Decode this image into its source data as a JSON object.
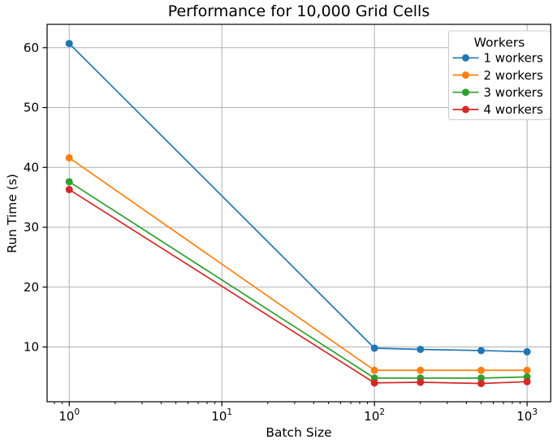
{
  "chart_data": {
    "type": "line",
    "title": "Performance for 10,000 Grid Cells",
    "xlabel": "Batch Size",
    "ylabel": "Run Time (s)",
    "x_scale": "log",
    "y_scale": "linear",
    "x": [
      1,
      100,
      200,
      500,
      1000
    ],
    "series": [
      {
        "name": "1 workers",
        "color": "#1f77b4",
        "values": [
          60.7,
          9.8,
          9.6,
          9.4,
          9.2
        ]
      },
      {
        "name": "2 workers",
        "color": "#ff7f0e",
        "values": [
          41.6,
          6.1,
          6.1,
          6.1,
          6.1
        ]
      },
      {
        "name": "3 workers",
        "color": "#2ca02c",
        "values": [
          37.6,
          4.8,
          4.8,
          4.8,
          5.0
        ]
      },
      {
        "name": "4 workers",
        "color": "#d62728",
        "values": [
          36.3,
          4.0,
          4.1,
          3.9,
          4.2
        ]
      }
    ],
    "legend": {
      "title": "Workers",
      "position": "upper right"
    },
    "x_major_ticks": [
      {
        "value": 1,
        "base": "10",
        "exponent": "0"
      },
      {
        "value": 10,
        "base": "10",
        "exponent": "1"
      },
      {
        "value": 100,
        "base": "10",
        "exponent": "2"
      },
      {
        "value": 1000,
        "base": "10",
        "exponent": "3"
      }
    ],
    "y_ticks": [
      10,
      20,
      30,
      40,
      50,
      60
    ],
    "xlim_log10": [
      -0.145,
      3.155
    ],
    "ylim": [
      0.85,
      63.9
    ],
    "grid": true,
    "style": {
      "grid_color": "#b0b0b0",
      "spine_color": "#000000",
      "text_color": "#000000",
      "background": "#ffffff",
      "legend_border": "#cccccc",
      "legend_background": "#ffffff"
    }
  }
}
